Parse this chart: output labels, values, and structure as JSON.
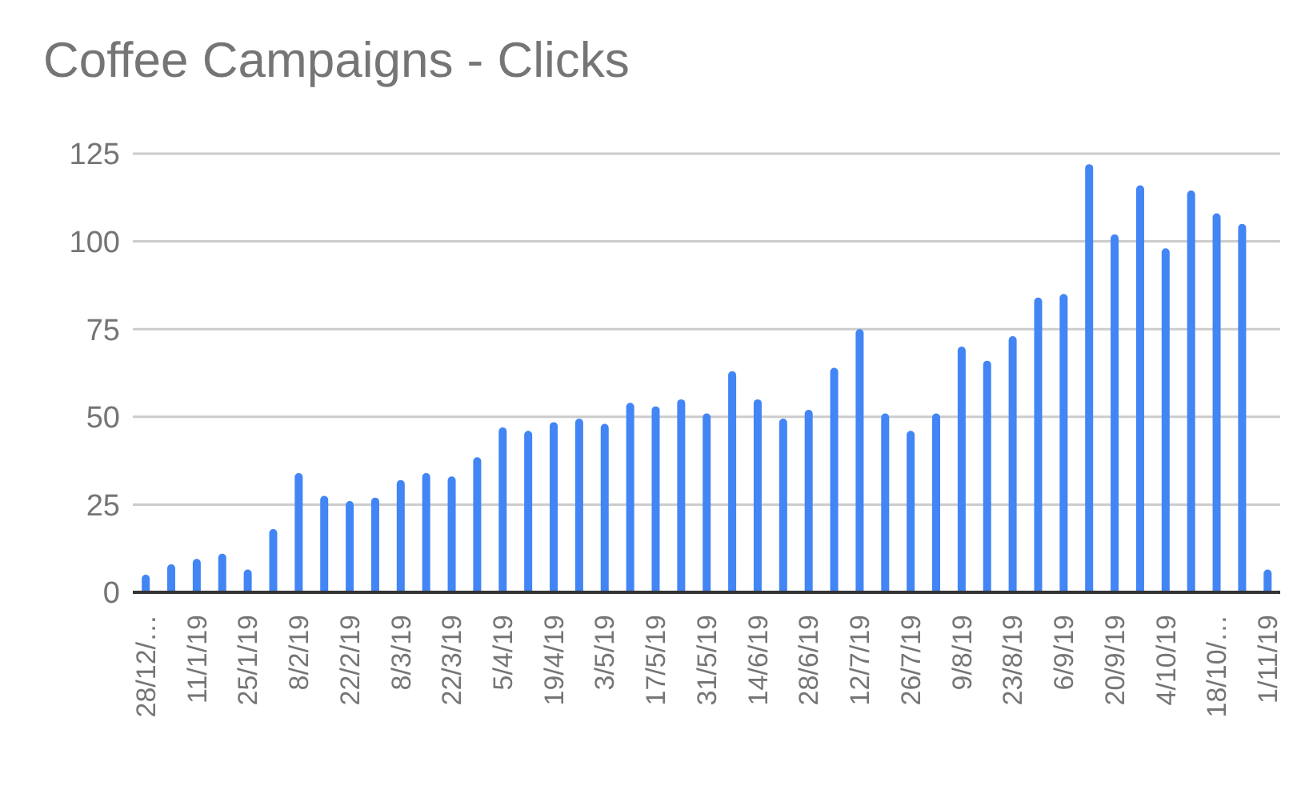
{
  "chart_data": {
    "type": "bar",
    "title": "Coffee Campaigns - Clicks",
    "categories": [
      "28/12/…",
      null,
      "11/1/19",
      null,
      "25/1/19",
      null,
      "8/2/19",
      null,
      "22/2/19",
      null,
      "8/3/19",
      null,
      "22/3/19",
      null,
      "5/4/19",
      null,
      "19/4/19",
      null,
      "3/5/19",
      null,
      "17/5/19",
      null,
      "31/5/19",
      null,
      "14/6/19",
      null,
      "28/6/19",
      null,
      "12/7/19",
      null,
      "26/7/19",
      null,
      "9/8/19",
      null,
      "23/8/19",
      null,
      "6/9/19",
      null,
      "20/9/19",
      null,
      "4/10/19",
      null,
      "18/10/…",
      null,
      "1/11/19"
    ],
    "values": [
      5,
      8,
      9.5,
      11,
      6.5,
      18,
      34,
      27.5,
      26,
      27,
      32,
      34,
      33,
      38.5,
      47,
      46,
      48.5,
      49.5,
      48,
      54,
      53,
      55,
      51,
      63,
      55,
      49.5,
      52,
      64,
      75,
      51,
      46,
      51,
      70,
      66,
      73,
      84,
      85,
      122,
      102,
      116,
      98,
      114.5,
      108,
      105,
      6.5
    ],
    "color": "#4285f4",
    "ylim": [
      0,
      125
    ],
    "yticks": [
      0,
      25,
      50,
      75,
      100,
      125
    ],
    "grid": "y"
  }
}
